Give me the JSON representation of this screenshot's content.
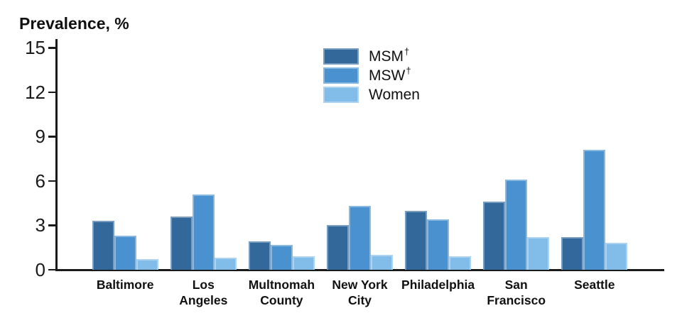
{
  "title": "Prevalence, %",
  "legend": {
    "items": [
      {
        "label": "MSM",
        "sup": "†",
        "color": "#33689B"
      },
      {
        "label": "MSW",
        "sup": "†",
        "color": "#4A92CF"
      },
      {
        "label": "Women",
        "sup": "",
        "color": "#82BCE8"
      }
    ]
  },
  "chart_data": {
    "type": "bar",
    "title": "Prevalence, %",
    "xlabel": "",
    "ylabel": "Prevalence, %",
    "ylim": [
      0,
      15
    ],
    "yticks": [
      0,
      3,
      6,
      9,
      12,
      15
    ],
    "grid": false,
    "legend_position": "top-center",
    "categories": [
      "Baltimore",
      "Los\nAngeles",
      "Multnomah\nCounty",
      "New York\nCity",
      "Philadelphia",
      "San\nFrancisco",
      "Seattle"
    ],
    "series": [
      {
        "name": "MSM†",
        "color": "#33689B",
        "values": [
          3.3,
          3.6,
          1.9,
          3.0,
          4.0,
          4.6,
          2.2
        ]
      },
      {
        "name": "MSW†",
        "color": "#4A92CF",
        "values": [
          2.3,
          5.1,
          1.7,
          4.3,
          3.4,
          6.1,
          8.1
        ]
      },
      {
        "name": "Women",
        "color": "#82BCE8",
        "values": [
          0.7,
          0.8,
          0.9,
          1.0,
          0.9,
          2.2,
          1.8
        ]
      }
    ]
  }
}
